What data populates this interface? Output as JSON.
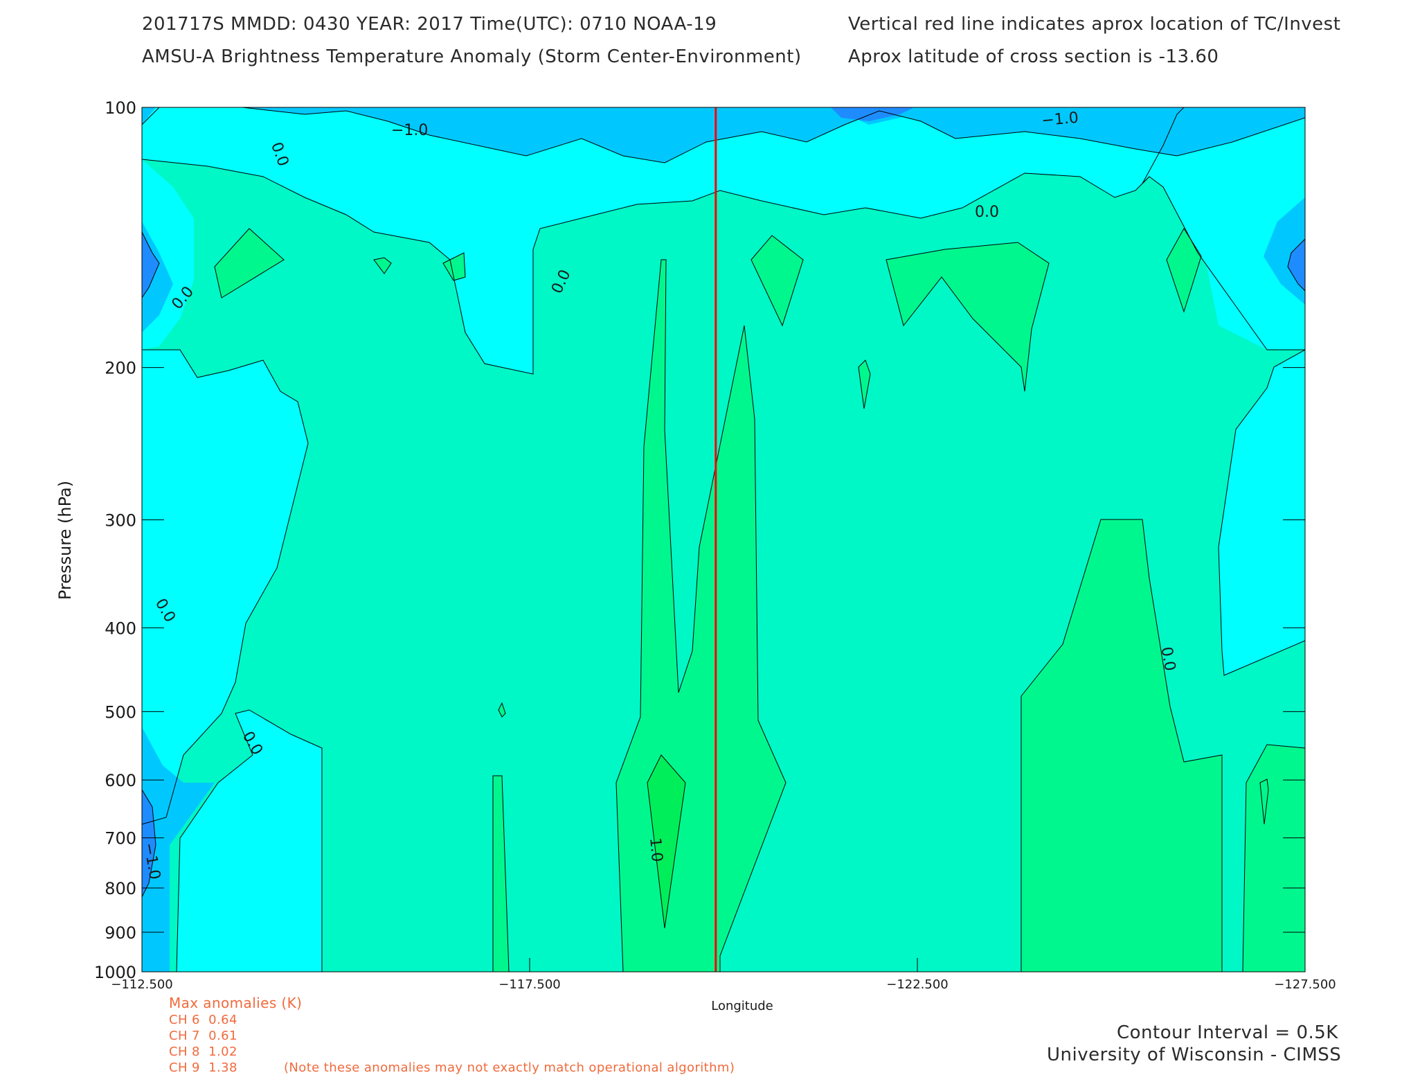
{
  "header": {
    "line1_left": "201717S  MMDD: 0430 YEAR: 2017 Time(UTC): 0710 NOAA-19",
    "line2_left": "AMSU-A Brightness Temperature Anomaly (Storm Center-Environment)",
    "line1_right": "Vertical red line indicates aprox location of TC/Invest",
    "line2_right": "Aprox latitude of cross section is -13.60"
  },
  "chart_data": {
    "type": "contour",
    "xlabel": "Longitude",
    "ylabel": "Pressure (hPa)",
    "xlim": [
      -112.5,
      -127.5
    ],
    "ylim": [
      1000,
      100
    ],
    "x_ticks": [
      "-112.500",
      "-117.500",
      "-122.500",
      "-127.500"
    ],
    "y_ticks": [
      "100",
      "200",
      "300",
      "400",
      "500",
      "600",
      "700",
      "800",
      "900",
      "1000"
    ],
    "y_tick_values": [
      100,
      200,
      300,
      400,
      500,
      600,
      700,
      800,
      900,
      1000
    ],
    "contour_interval_K": 0.5,
    "contour_labels": [
      "-1.0",
      "0.0",
      "-1.0",
      "0.0",
      "0.0",
      "0.0",
      "0.0",
      "0.0",
      "1.0",
      "0.0",
      "-1.0"
    ],
    "tc_longitude": -119.9,
    "colors": {
      "level_neg_1_5": "#1e8cff",
      "level_neg_1_0": "#00c8ff",
      "level_neg_0_5": "#00ffff",
      "level_0_0": "#00f7c6",
      "level_0_5": "#00f78e",
      "level_1_0": "#00ee5a",
      "tc_line": "#ff0000"
    }
  },
  "max_anomalies": {
    "title": "Max anomalies (K)",
    "rows": [
      {
        "label": "CH 6",
        "value": "0.64"
      },
      {
        "label": "CH 7",
        "value": "0.61"
      },
      {
        "label": "CH 8",
        "value": "1.02"
      },
      {
        "label": "CH 9",
        "value": "1.38"
      }
    ],
    "note": "(Note these anomalies may not exactly match operational algorithm)"
  },
  "footer": {
    "contour_interval": "Contour Interval = 0.5K",
    "credit": "University of Wisconsin - CIMSS"
  }
}
